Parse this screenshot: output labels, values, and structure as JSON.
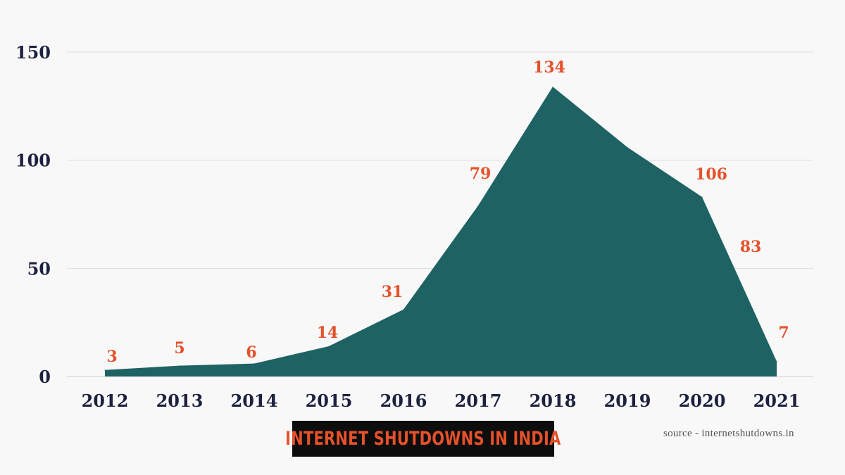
{
  "chart_data": {
    "type": "area",
    "title": "INTERNET SHUTDOWNS IN INDIA",
    "categories": [
      "2012",
      "2013",
      "2014",
      "2015",
      "2016",
      "2017",
      "2018",
      "2019",
      "2020",
      "2021"
    ],
    "series": [
      {
        "values": [
          3,
          5,
          6,
          14,
          31,
          79,
          134,
          106,
          83,
          7
        ]
      }
    ],
    "data_labels": [
      "3",
      "5",
      "6",
      "14",
      "31",
      "79",
      "134",
      "106",
      "83",
      "7"
    ],
    "yticks": [
      "0",
      "50",
      "100",
      "150"
    ],
    "ylim": [
      0,
      150
    ],
    "grid": true,
    "source": "source - internetshutdowns.in",
    "colors": {
      "area": "#1e6264",
      "label": "#e5512a",
      "axis_text": "#1c2140",
      "grid": "#dddddd"
    }
  }
}
